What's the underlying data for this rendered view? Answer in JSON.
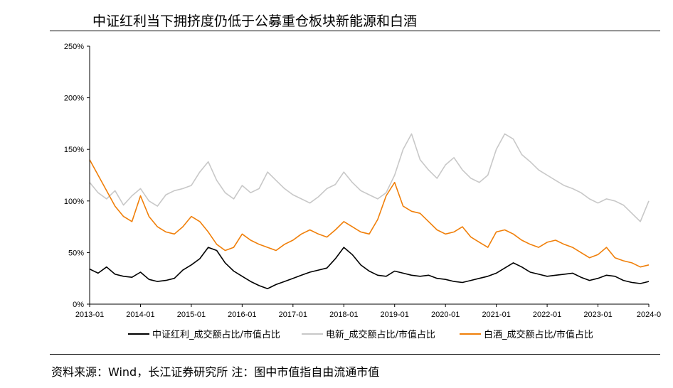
{
  "title": "中证红利当下拥挤度仍低于公募重仓板块新能源和白酒",
  "source": "资料来源：Wind，长江证券研究所  注：图中市值指自由流通市值",
  "colors": {
    "dividend": "#000000",
    "new_energy": "#c8c8c8",
    "baijiu": "#f07f09",
    "axis": "#000000"
  },
  "chart_data": {
    "type": "line",
    "title": "中证红利当下拥挤度仍低于公募重仓板块新能源和白酒",
    "xlabel": "",
    "ylabel": "",
    "x_ticks": [
      "2013-01",
      "2014-01",
      "2015-01",
      "2016-01",
      "2017-01",
      "2018-01",
      "2019-01",
      "2020-01",
      "2021-01",
      "2022-01",
      "2023-01",
      "2024-0"
    ],
    "y_ticks": [
      "0%",
      "50%",
      "100%",
      "150%",
      "200%",
      "250%"
    ],
    "ylim": [
      0,
      250
    ],
    "xlim": [
      "2013-01",
      "2024-01"
    ],
    "grid": false,
    "legend": "bottom",
    "x": [
      "2013-01",
      "2013-03",
      "2013-05",
      "2013-07",
      "2013-09",
      "2013-11",
      "2014-01",
      "2014-03",
      "2014-05",
      "2014-07",
      "2014-09",
      "2014-11",
      "2015-01",
      "2015-03",
      "2015-05",
      "2015-07",
      "2015-09",
      "2015-11",
      "2016-01",
      "2016-03",
      "2016-05",
      "2016-07",
      "2016-09",
      "2016-11",
      "2017-01",
      "2017-03",
      "2017-05",
      "2017-07",
      "2017-09",
      "2017-11",
      "2018-01",
      "2018-03",
      "2018-05",
      "2018-07",
      "2018-09",
      "2018-11",
      "2019-01",
      "2019-03",
      "2019-05",
      "2019-07",
      "2019-09",
      "2019-11",
      "2020-01",
      "2020-03",
      "2020-05",
      "2020-07",
      "2020-09",
      "2020-11",
      "2021-01",
      "2021-03",
      "2021-05",
      "2021-07",
      "2021-09",
      "2021-11",
      "2022-01",
      "2022-03",
      "2022-05",
      "2022-07",
      "2022-09",
      "2022-11",
      "2023-01",
      "2023-03",
      "2023-05",
      "2023-07",
      "2023-09",
      "2023-11",
      "2024-01"
    ],
    "series": [
      {
        "name": "中证红利_成交额占比/市值占比",
        "color": "#000000",
        "values": [
          34,
          30,
          36,
          29,
          27,
          26,
          31,
          24,
          22,
          23,
          25,
          33,
          38,
          44,
          55,
          52,
          40,
          32,
          27,
          22,
          18,
          15,
          19,
          22,
          25,
          28,
          31,
          33,
          35,
          44,
          55,
          48,
          38,
          32,
          28,
          27,
          32,
          30,
          28,
          27,
          28,
          25,
          24,
          22,
          21,
          23,
          25,
          27,
          30,
          35,
          40,
          36,
          31,
          29,
          27,
          28,
          29,
          30,
          26,
          23,
          25,
          28,
          27,
          23,
          21,
          20,
          22
        ]
      },
      {
        "name": "电新_成交额占比/市值占比",
        "color": "#c8c8c8",
        "values": [
          118,
          108,
          102,
          110,
          96,
          105,
          112,
          100,
          95,
          106,
          110,
          112,
          115,
          128,
          138,
          120,
          108,
          102,
          115,
          108,
          112,
          128,
          120,
          112,
          106,
          102,
          98,
          104,
          112,
          116,
          128,
          118,
          110,
          106,
          102,
          108,
          125,
          150,
          165,
          140,
          130,
          122,
          135,
          142,
          130,
          122,
          118,
          125,
          150,
          165,
          160,
          145,
          138,
          130,
          125,
          120,
          115,
          112,
          108,
          102,
          98,
          102,
          100,
          96,
          88,
          80,
          100
        ]
      },
      {
        "name": "白酒_成交额占比/市值占比",
        "color": "#f07f09",
        "values": [
          140,
          125,
          110,
          95,
          85,
          80,
          105,
          85,
          75,
          70,
          68,
          75,
          85,
          80,
          70,
          58,
          52,
          55,
          68,
          62,
          58,
          55,
          52,
          58,
          62,
          68,
          72,
          68,
          65,
          72,
          80,
          75,
          70,
          68,
          82,
          105,
          118,
          95,
          90,
          88,
          80,
          72,
          68,
          70,
          75,
          65,
          60,
          55,
          70,
          72,
          68,
          62,
          58,
          55,
          60,
          62,
          58,
          55,
          50,
          45,
          48,
          55,
          45,
          42,
          40,
          36,
          38
        ]
      }
    ]
  }
}
